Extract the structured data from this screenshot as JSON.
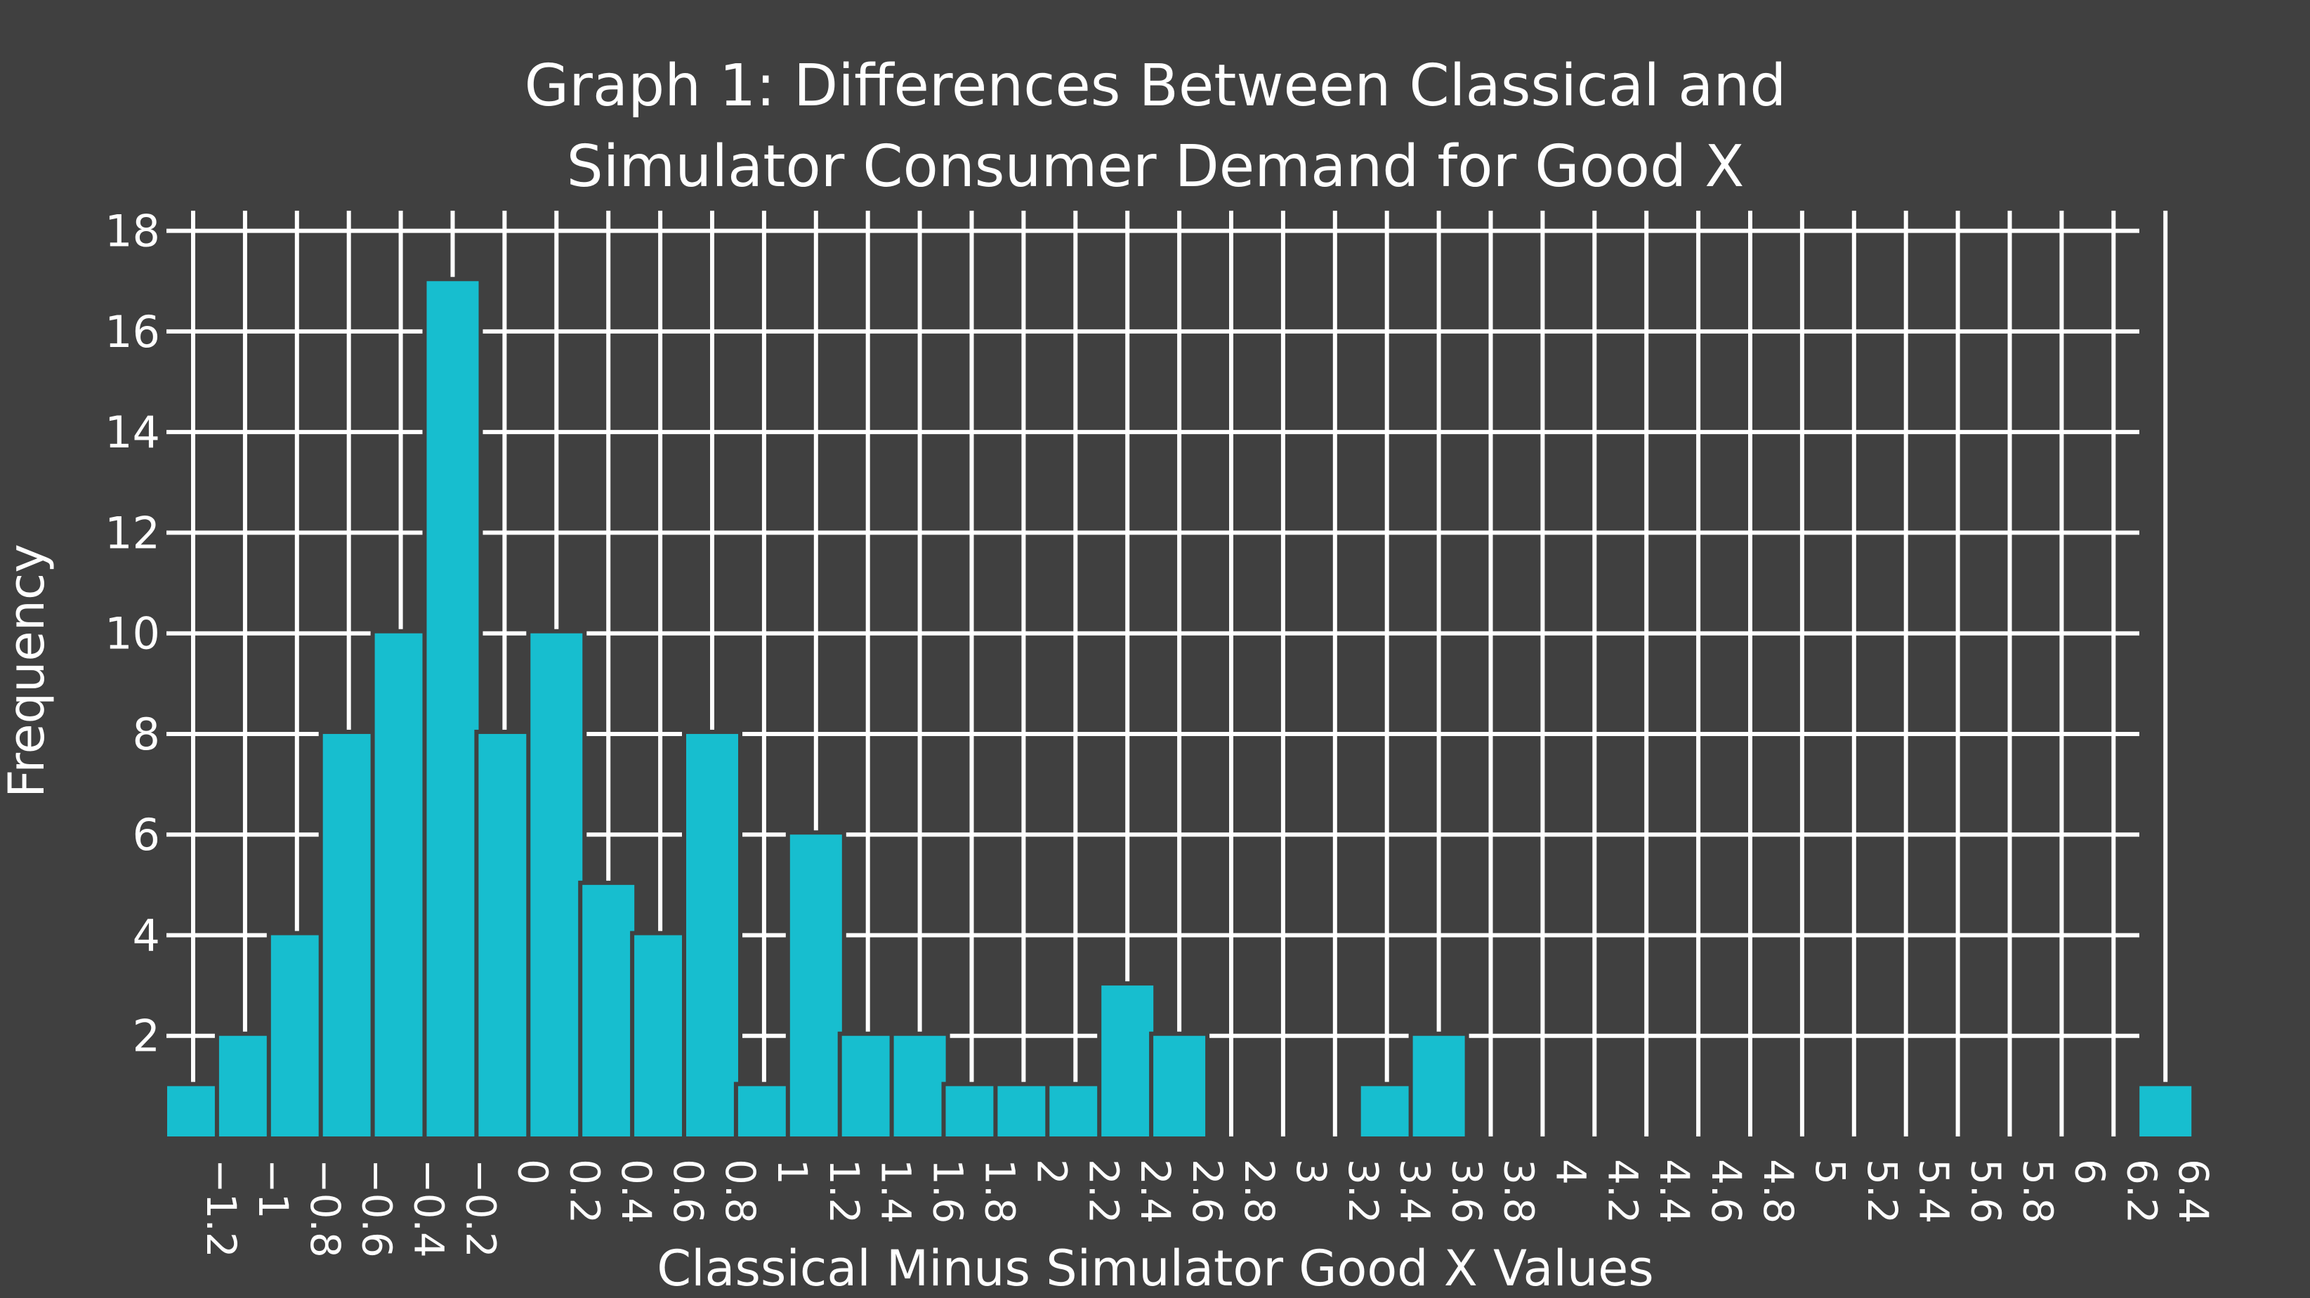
{
  "chart_data": {
    "type": "bar",
    "title_lines": [
      "Graph 1: Differences Between Classical and",
      "Simulator Consumer Demand for Good X"
    ],
    "xlabel": "Classical Minus Simulator Good X Values",
    "ylabel": "Frequency",
    "categories": [
      "−1.2",
      "−1",
      "−0.8",
      "−0.6",
      "−0.4",
      "−0.2",
      "0",
      "0.2",
      "0.4",
      "0.6",
      "0.8",
      "1",
      "1.2",
      "1.4",
      "1.6",
      "1.8",
      "2",
      "2.2",
      "2.4",
      "2.6",
      "2.8",
      "3",
      "3.2",
      "3.4",
      "3.6",
      "3.8",
      "4",
      "4.2",
      "4.4",
      "4.6",
      "4.8",
      "5",
      "5.2",
      "5.4",
      "5.6",
      "5.8",
      "6",
      "6.2",
      "6.4"
    ],
    "values": [
      1,
      2,
      4,
      8,
      10,
      17,
      8,
      10,
      5,
      4,
      8,
      1,
      6,
      2,
      2,
      1,
      1,
      1,
      3,
      2,
      0,
      0,
      0,
      1,
      2,
      0,
      0,
      0,
      0,
      0,
      0,
      0,
      0,
      0,
      0,
      0,
      0,
      0,
      1
    ],
    "yticks": [
      2,
      4,
      6,
      8,
      10,
      12,
      14,
      16,
      18
    ],
    "ylim": [
      0,
      18.4
    ],
    "grid": true,
    "colors": {
      "bar": "#17becf",
      "background": "#404040",
      "grid": "#ffffff",
      "text": "#ffffff"
    }
  }
}
